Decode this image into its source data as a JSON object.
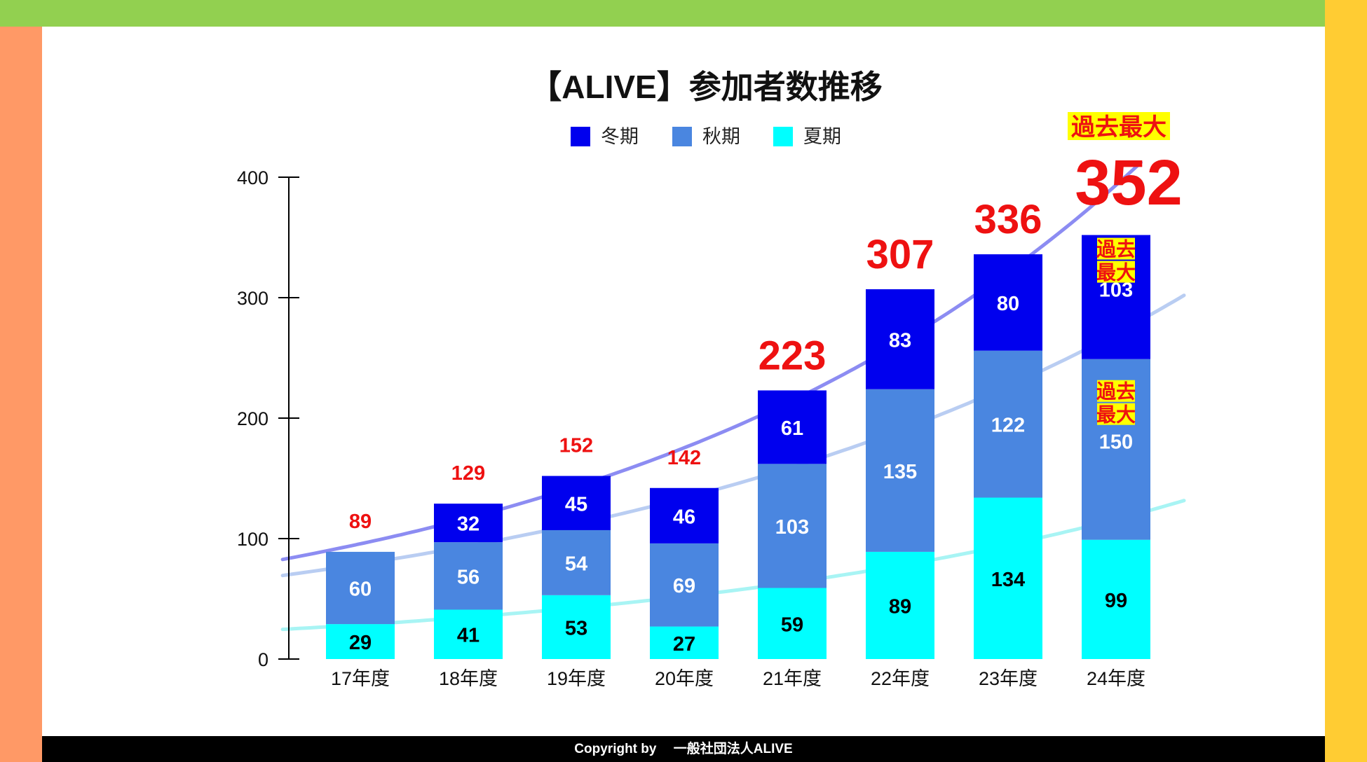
{
  "colors": {
    "top_band": "#92d050",
    "left_band": "#ff9966",
    "right_band": "#ffcc33",
    "winter": "#0000ee",
    "autumn": "#4a86e0",
    "summer": "#00ffff",
    "total_text": "#ee1111",
    "badge_bg": "#ffff00"
  },
  "footer": {
    "text": "Copyright by　 一般社団法人ALIVE"
  },
  "chart_data": {
    "type": "bar",
    "stacked": true,
    "title": "【ALIVE】参加者数推移",
    "xlabel": "",
    "ylabel": "",
    "ylim": [
      0,
      400
    ],
    "yticks": [
      "0",
      "100",
      "200",
      "300",
      "400"
    ],
    "grid": false,
    "legend_position": "top",
    "categories": [
      "17年度",
      "18年度",
      "19年度",
      "20年度",
      "21年度",
      "22年度",
      "23年度",
      "24年度"
    ],
    "series": [
      {
        "name": "夏期",
        "values": [
          29,
          41,
          53,
          27,
          59,
          89,
          134,
          99
        ]
      },
      {
        "name": "秋期",
        "values": [
          60,
          56,
          54,
          69,
          103,
          135,
          122,
          150
        ]
      },
      {
        "name": "冬期",
        "values": [
          0,
          32,
          45,
          46,
          61,
          83,
          80,
          103
        ]
      }
    ],
    "legend_order": [
      "冬期",
      "秋期",
      "夏期"
    ],
    "totals": [
      "89",
      "129",
      "152",
      "142",
      "223",
      "307",
      "336",
      "352"
    ],
    "annotations": {
      "record_label": "過去最大",
      "badge_line1": "過去",
      "badge_line2": "最大"
    },
    "trendlines": true
  }
}
